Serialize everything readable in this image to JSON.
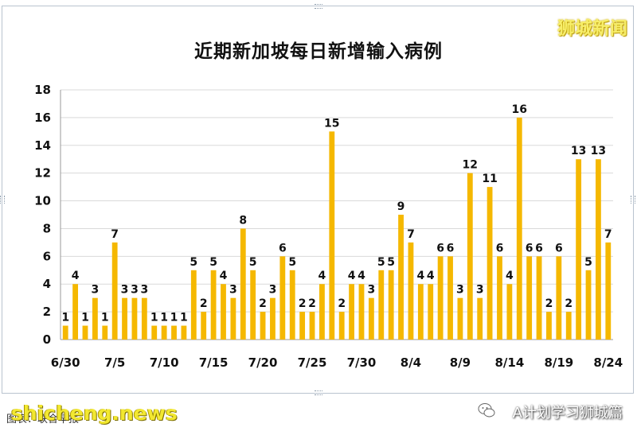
{
  "watermark_top": "狮城新闻",
  "footer": {
    "source_text": "图表：联合早报",
    "brand": "shicheng.news",
    "wechat_account": "A计划学习狮城篇"
  },
  "colors": {
    "bar": "#f5b800",
    "grid": "#d9d9d9"
  },
  "chart_data": {
    "type": "bar",
    "title": "近期新加坡每日新增输入病例",
    "xlabel": "",
    "ylabel": "",
    "ylim": [
      0,
      18
    ],
    "yticks": [
      0,
      2,
      4,
      6,
      8,
      10,
      12,
      14,
      16,
      18
    ],
    "grid": true,
    "categories": [
      "6/30",
      "7/1",
      "7/2",
      "7/3",
      "7/4",
      "7/5",
      "7/6",
      "7/7",
      "7/8",
      "7/9",
      "7/10",
      "7/11",
      "7/12",
      "7/13",
      "7/14",
      "7/15",
      "7/16",
      "7/17",
      "7/18",
      "7/19",
      "7/20",
      "7/21",
      "7/22",
      "7/23",
      "7/24",
      "7/25",
      "7/26",
      "7/27",
      "7/28",
      "7/29",
      "7/30",
      "7/31",
      "8/1",
      "8/2",
      "8/3",
      "8/4",
      "8/5",
      "8/6",
      "8/7",
      "8/8",
      "8/9",
      "8/10",
      "8/11",
      "8/12",
      "8/13",
      "8/14",
      "8/15",
      "8/16",
      "8/17",
      "8/18",
      "8/19",
      "8/20",
      "8/21",
      "8/22",
      "8/23",
      "8/24"
    ],
    "x_tick_labels": [
      "6/30",
      "7/5",
      "7/10",
      "7/15",
      "7/20",
      "7/25",
      "7/30",
      "8/4",
      "8/9",
      "8/14",
      "8/19",
      "8/24"
    ],
    "values": [
      1,
      4,
      1,
      3,
      1,
      7,
      3,
      3,
      3,
      1,
      1,
      1,
      1,
      5,
      2,
      5,
      4,
      3,
      8,
      5,
      2,
      3,
      6,
      5,
      2,
      2,
      4,
      15,
      2,
      4,
      4,
      3,
      5,
      5,
      9,
      7,
      4,
      4,
      6,
      6,
      3,
      12,
      3,
      11,
      6,
      4,
      16,
      6,
      6,
      2,
      6,
      2,
      13,
      5,
      13,
      7
    ]
  }
}
